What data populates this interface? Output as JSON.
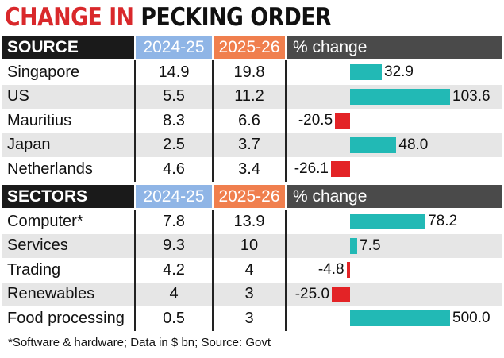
{
  "title": {
    "part1": "CHANGE IN",
    "part2": "PECKING ORDER"
  },
  "footnote": "*Software & hardware; Data in $ bn; Source: Govt",
  "colors": {
    "title_red": "#d9282b",
    "bar_positive": "#22b9b5",
    "bar_negative": "#e32326",
    "header_2024": "#8fb5e6",
    "header_2025": "#f07f4e"
  },
  "chart_data": {
    "type": "table",
    "sections": [
      {
        "header": [
          "SOURCE",
          "2024-25",
          "2025-26",
          "% change"
        ],
        "rows": [
          {
            "name": "Singapore",
            "v2024": "14.9",
            "v2025": "19.8",
            "change": 32.9,
            "change_label": "32.9"
          },
          {
            "name": "US",
            "v2024": "5.5",
            "v2025": "11.2",
            "change": 103.6,
            "change_label": "103.6"
          },
          {
            "name": "Mauritius",
            "v2024": "8.3",
            "v2025": "6.6",
            "change": -20.5,
            "change_label": "-20.5"
          },
          {
            "name": "Japan",
            "v2024": "2.5",
            "v2025": "3.7",
            "change": 48.0,
            "change_label": "48.0"
          },
          {
            "name": "Netherlands",
            "v2024": "4.6",
            "v2025": "3.4",
            "change": -26.1,
            "change_label": "-26.1"
          }
        ]
      },
      {
        "header": [
          "SECTORS",
          "2024-25",
          "2025-26",
          "% change"
        ],
        "rows": [
          {
            "name": "Computer*",
            "v2024": "7.8",
            "v2025": "13.9",
            "change": 78.2,
            "change_label": "78.2"
          },
          {
            "name": "Services",
            "v2024": "9.3",
            "v2025": "10",
            "change": 7.5,
            "change_label": "7.5"
          },
          {
            "name": "Trading",
            "v2024": "4.2",
            "v2025": "4",
            "change": -4.8,
            "change_label": "-4.8"
          },
          {
            "name": "Renewables",
            "v2024": "4",
            "v2025": "3",
            "change": -25.0,
            "change_label": "-25.0"
          },
          {
            "name": "Food processing",
            "v2024": "0.5",
            "v2025": "3",
            "change": 500.0,
            "change_label": "500.0"
          }
        ]
      }
    ]
  }
}
